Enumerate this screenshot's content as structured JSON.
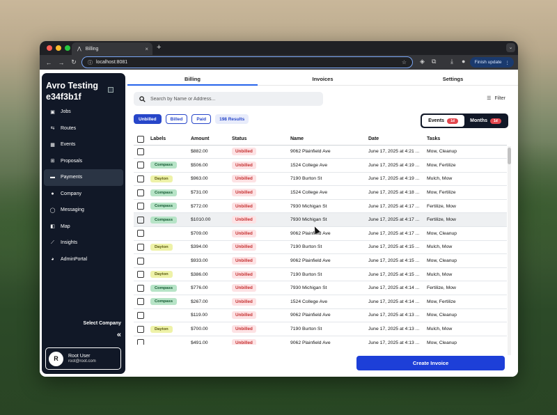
{
  "browser": {
    "tab_title": "Billing",
    "tab_close": "×",
    "new_tab": "+",
    "url": "localhost:8081",
    "finish_update": "Finish update"
  },
  "sidebar": {
    "brand_line1": "Avro Testing",
    "brand_line2": "e34f3b1f",
    "items": [
      {
        "label": "Jobs",
        "icon": "briefcase-icon"
      },
      {
        "label": "Routes",
        "icon": "routes-icon"
      },
      {
        "label": "Events",
        "icon": "calendar-icon"
      },
      {
        "label": "Proposals",
        "icon": "plus-box-icon"
      },
      {
        "label": "Payments",
        "icon": "card-icon"
      },
      {
        "label": "Company",
        "icon": "circle-icon"
      },
      {
        "label": "Messaging",
        "icon": "chat-icon"
      },
      {
        "label": "Map",
        "icon": "map-icon"
      },
      {
        "label": "Insights",
        "icon": "chart-icon"
      },
      {
        "label": "AdminPortal",
        "icon": "admin-icon"
      }
    ],
    "select_company": "Select Company",
    "collapse_glyph": "«",
    "user": {
      "initial": "R",
      "name": "Root User",
      "email": "root@root.com"
    }
  },
  "main": {
    "tabs": [
      "Billing",
      "Invoices",
      "Settings"
    ],
    "search_placeholder": "Search by Name or Address...",
    "filter_label": "Filter",
    "chips": {
      "unbilled": "Unbilled",
      "billed": "Billed",
      "paid": "Paid",
      "results": "198 Results"
    },
    "segment": {
      "events": "Events",
      "events_badge": "1d",
      "months": "Months",
      "months_badge": "1d"
    },
    "columns": [
      "Labels",
      "Amount",
      "Status",
      "Name",
      "Date",
      "Tasks"
    ],
    "rows": [
      {
        "label": "",
        "amount": "$882.00",
        "status": "Unbilled",
        "name": "9062 Plainfield Ave",
        "date": "June 17, 2025 at 4:21 ...",
        "tasks": "Mow, Cleanup"
      },
      {
        "label": "Compass",
        "amount": "$506.00",
        "status": "Unbilled",
        "name": "1524 College Ave",
        "date": "June 17, 2025 at 4:19 ...",
        "tasks": "Mow, Fertilize"
      },
      {
        "label": "Dayton",
        "amount": "$963.00",
        "status": "Unbilled",
        "name": "7190 Burton St",
        "date": "June 17, 2025 at 4:19 ...",
        "tasks": "Mulch, Mow"
      },
      {
        "label": "Compass",
        "amount": "$731.00",
        "status": "Unbilled",
        "name": "1524 College Ave",
        "date": "June 17, 2025 at 4:18 ...",
        "tasks": "Mow, Fertilize"
      },
      {
        "label": "Compass",
        "amount": "$772.00",
        "status": "Unbilled",
        "name": "7930 Michigan St",
        "date": "June 17, 2025 at 4:17 ...",
        "tasks": "Fertilize, Mow"
      },
      {
        "label": "Compass",
        "amount": "$1010.00",
        "status": "Unbilled",
        "name": "7930 Michigan St",
        "date": "June 17, 2025 at 4:17 ...",
        "tasks": "Fertilize, Mow"
      },
      {
        "label": "",
        "amount": "$709.00",
        "status": "Unbilled",
        "name": "9062 Plainfield Ave",
        "date": "June 17, 2025 at 4:17 ...",
        "tasks": "Mow, Cleanup"
      },
      {
        "label": "Dayton",
        "amount": "$394.00",
        "status": "Unbilled",
        "name": "7190 Burton St",
        "date": "June 17, 2025 at 4:15 ...",
        "tasks": "Mulch, Mow"
      },
      {
        "label": "",
        "amount": "$933.00",
        "status": "Unbilled",
        "name": "9062 Plainfield Ave",
        "date": "June 17, 2025 at 4:15 ...",
        "tasks": "Mow, Cleanup"
      },
      {
        "label": "Dayton",
        "amount": "$386.00",
        "status": "Unbilled",
        "name": "7190 Burton St",
        "date": "June 17, 2025 at 4:15 ...",
        "tasks": "Mulch, Mow"
      },
      {
        "label": "Compass",
        "amount": "$776.00",
        "status": "Unbilled",
        "name": "7930 Michigan St",
        "date": "June 17, 2025 at 4:14 ...",
        "tasks": "Fertilize, Mow"
      },
      {
        "label": "Compass",
        "amount": "$267.00",
        "status": "Unbilled",
        "name": "1524 College Ave",
        "date": "June 17, 2025 at 4:14 ...",
        "tasks": "Mow, Fertilize"
      },
      {
        "label": "",
        "amount": "$119.00",
        "status": "Unbilled",
        "name": "9062 Plainfield Ave",
        "date": "June 17, 2025 at 4:13 ...",
        "tasks": "Mow, Cleanup"
      },
      {
        "label": "Dayton",
        "amount": "$700.00",
        "status": "Unbilled",
        "name": "7190 Burton St",
        "date": "June 17, 2025 at 4:13 ...",
        "tasks": "Mulch, Mow"
      },
      {
        "label": "",
        "amount": "$491.00",
        "status": "Unbilled",
        "name": "9062 Plainfield Ave",
        "date": "June 17, 2025 at 4:13 ...",
        "tasks": "Mow, Cleanup"
      }
    ],
    "create_invoice": "Create Invoice"
  }
}
